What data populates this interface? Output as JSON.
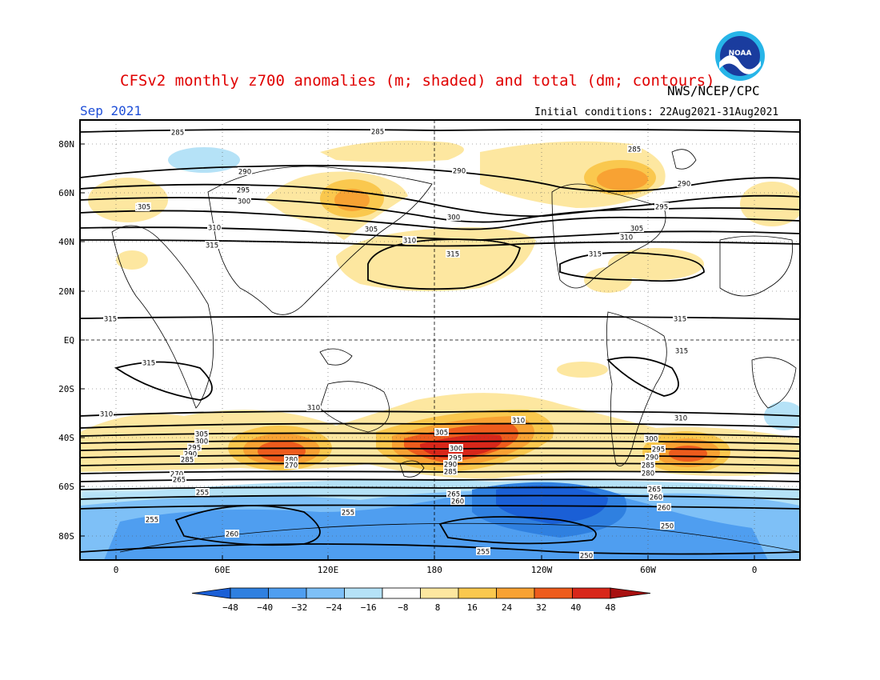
{
  "title": "CFSv2 monthly z700 anomalies (m; shaded) and total (dm; contours)",
  "agency": "NWS/NCEP/CPC",
  "logo_text": "NOAA",
  "valid_month": "Sep 2021",
  "initial_conditions": "Initial conditions: 22Aug2021-31Aug2021",
  "lat_labels": [
    "80N",
    "60N",
    "40N",
    "20N",
    "EQ",
    "20S",
    "40S",
    "60S",
    "80S"
  ],
  "lon_labels": [
    "0",
    "60E",
    "120E",
    "180",
    "120W",
    "60W",
    "0"
  ],
  "colorbar": {
    "ticks": [
      "-48",
      "-40",
      "-32",
      "-24",
      "-16",
      "-8",
      "8",
      "16",
      "24",
      "32",
      "40",
      "48"
    ],
    "colors": [
      "#1a5fd6",
      "#2f80e0",
      "#4f9ef0",
      "#7ec0f7",
      "#b5e2f7",
      "#ffffff",
      "#fde7a0",
      "#fac84e",
      "#f8a233",
      "#ee5c1d",
      "#d8271a",
      "#a81010"
    ]
  },
  "contour_labels": [
    "285",
    "285",
    "285",
    "290",
    "290",
    "290",
    "295",
    "300",
    "295",
    "295",
    "300",
    "305",
    "305",
    "305",
    "310",
    "310",
    "310",
    "315",
    "315",
    "315",
    "315",
    "315",
    "315",
    "315",
    "310",
    "310",
    "310",
    "310",
    "305",
    "305",
    "300",
    "300",
    "300",
    "295",
    "295",
    "295",
    "290",
    "290",
    "290",
    "285",
    "285",
    "285",
    "280",
    "280",
    "270",
    "270",
    "265",
    "265",
    "265",
    "260",
    "260",
    "260",
    "260",
    "255",
    "255",
    "255",
    "255",
    "250",
    "250"
  ]
}
